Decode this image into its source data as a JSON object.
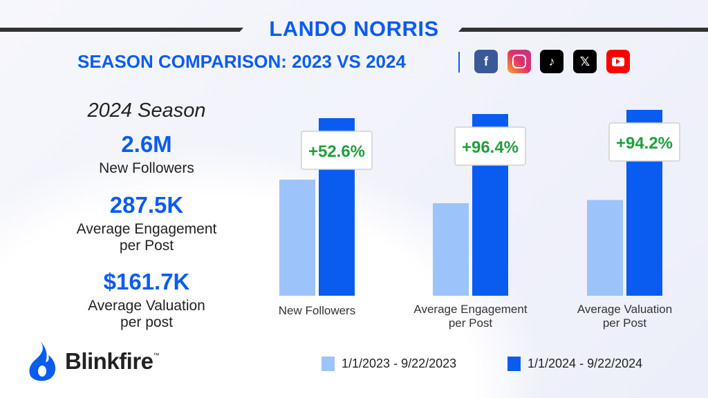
{
  "header": {
    "title": "LANDO NORRIS",
    "subtitle": "SEASON COMPARISON: 2023 VS 2024",
    "social_icons": [
      "facebook-icon",
      "instagram-icon",
      "tiktok-icon",
      "x-icon",
      "youtube-icon"
    ]
  },
  "summary": {
    "season_label": "2024 Season",
    "stats": [
      {
        "value": "2.6M",
        "label_line1": "New Followers",
        "label_line2": ""
      },
      {
        "value": "287.5K",
        "label_line1": "Average Engagement",
        "label_line2": "per Post"
      },
      {
        "value": "$161.7K",
        "label_line1": "Average Valuation",
        "label_line2": "per post"
      }
    ]
  },
  "logo": {
    "text": "Blinkfire",
    "tm": "™"
  },
  "colors": {
    "series_2023": "#9dc3fb",
    "series_2024": "#0a5cf0",
    "title": "#0a5cf0",
    "change": "#1e9e3e"
  },
  "chart_data": {
    "type": "bar",
    "categories": [
      [
        "New Followers"
      ],
      [
        "Average Engagement",
        "per Post"
      ],
      [
        "Average Valuation",
        "per Post"
      ]
    ],
    "series": [
      {
        "name": "1/1/2023 - 9/22/2023",
        "values": [
          1.7,
          146.4,
          83.3
        ]
      },
      {
        "name": "1/1/2024 - 9/22/2024",
        "values": [
          2.6,
          287.5,
          161.7
        ]
      }
    ],
    "units": [
      "M",
      "K",
      "$K"
    ],
    "data_labels": [
      "+52.6%",
      "+96.4%",
      "+94.2%"
    ],
    "scale": "independent per category",
    "legend": "bottom",
    "grid": false
  }
}
